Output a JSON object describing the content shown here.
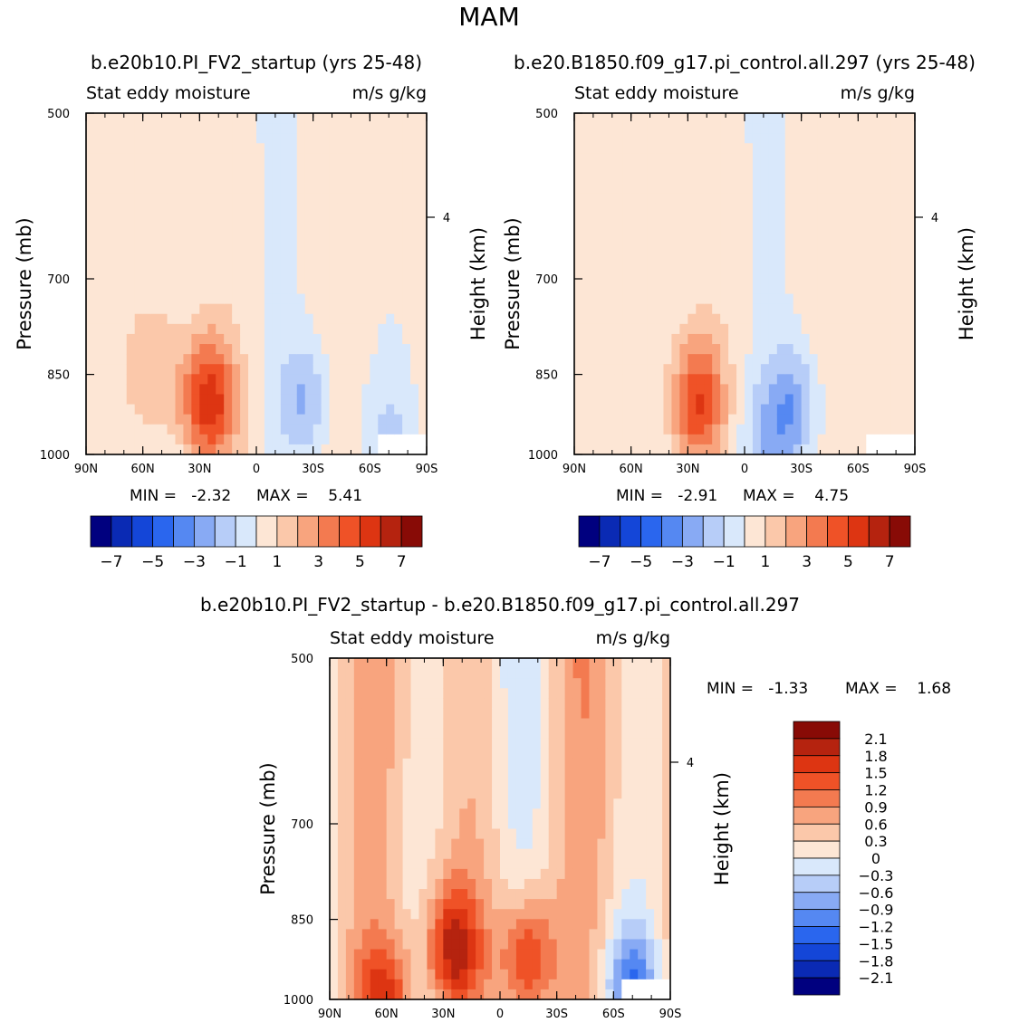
{
  "figure": {
    "season": "MAM"
  },
  "colors": {
    "levels14": [
      "#00007f",
      "#0a2ab4",
      "#1446d8",
      "#2a66ee",
      "#5588f2",
      "#88aaf4",
      "#b7cdf8",
      "#d9e8fb",
      "#fde6d5",
      "#fbc8aa",
      "#f8a47e",
      "#f37a50",
      "#ef5227",
      "#dd3512",
      "#b5230f",
      "#880b06"
    ],
    "diff": [
      "#00007f",
      "#0a2ab4",
      "#1446d8",
      "#2a66ee",
      "#5588f2",
      "#88aaf4",
      "#b7cdf8",
      "#d9e8fb",
      "#fde6d5",
      "#fbc8aa",
      "#f8a47e",
      "#f37a50",
      "#ef5227",
      "#dd3512",
      "#b5230f",
      "#880b06"
    ]
  },
  "chart_data": [
    {
      "type": "heatmap",
      "id": "panel1",
      "title": "b.e20b10.PI_FV2_startup (yrs 25-48)",
      "left_label": "Stat eddy moisture",
      "right_label": "m/s g/kg",
      "xlabel": "",
      "ylabel": "Pressure (mb)",
      "y2label": "Height (km)",
      "xticks": [
        "90N",
        "60N",
        "30N",
        "0",
        "30S",
        "60S",
        "90S"
      ],
      "xlim": [
        90,
        -90
      ],
      "yticks": [
        "500",
        "700",
        "850",
        "1000"
      ],
      "ylim": [
        1000,
        500
      ],
      "y2ticks": [
        "4"
      ],
      "min_text": "MIN =   -2.32",
      "max_text": "MAX =    5.41",
      "min": -2.32,
      "max": 5.41,
      "colorbar_labels": [
        "-7",
        "-5",
        "-3",
        "-1",
        "1",
        "3",
        "5",
        "7"
      ],
      "features": [
        {
          "lat": 25,
          "p": 900,
          "value": 5.4,
          "note": "positive maximum"
        },
        {
          "lat": -25,
          "p": 900,
          "value": -2.3,
          "note": "negative minimum"
        },
        {
          "lat": 50,
          "p": 850,
          "value": 1.5
        },
        {
          "lat": -70,
          "p": 940,
          "value": -1.2
        }
      ]
    },
    {
      "type": "heatmap",
      "id": "panel2",
      "title": "b.e20.B1850.f09_g17.pi_control.all.297 (yrs 25-48)",
      "left_label": "Stat eddy moisture",
      "right_label": "m/s g/kg",
      "xlabel": "",
      "ylabel": "Pressure (mb)",
      "y2label": "Height (km)",
      "xticks": [
        "90N",
        "60N",
        "30N",
        "0",
        "30S",
        "60S",
        "90S"
      ],
      "xlim": [
        90,
        -90
      ],
      "yticks": [
        "500",
        "700",
        "850",
        "1000"
      ],
      "ylim": [
        1000,
        500
      ],
      "y2ticks": [
        "4"
      ],
      "min_text": "MIN =   -2.91",
      "max_text": "MAX =    4.75",
      "min": -2.91,
      "max": 4.75,
      "colorbar_labels": [
        "-7",
        "-5",
        "-3",
        "-1",
        "1",
        "3",
        "5",
        "7"
      ],
      "features": [
        {
          "lat": 25,
          "p": 900,
          "value": 4.7,
          "note": "positive maximum"
        },
        {
          "lat": -25,
          "p": 910,
          "value": -2.9,
          "note": "negative minimum"
        },
        {
          "lat": -10,
          "p": 970,
          "value": -1.5
        }
      ]
    },
    {
      "type": "heatmap",
      "id": "panel3",
      "title": "b.e20b10.PI_FV2_startup - b.e20.B1850.f09_g17.pi_control.all.297",
      "left_label": "Stat eddy moisture",
      "right_label": "m/s g/kg",
      "xlabel": "",
      "ylabel": "Pressure (mb)",
      "y2label": "Height (km)",
      "xticks": [
        "90N",
        "60N",
        "30N",
        "0",
        "30S",
        "60S",
        "90S"
      ],
      "xlim": [
        90,
        -90
      ],
      "yticks": [
        "500",
        "700",
        "850",
        "1000"
      ],
      "ylim": [
        1000,
        500
      ],
      "y2ticks": [
        "4"
      ],
      "min_text": "MIN =   -1.33",
      "max_text": "MAX =    1.68",
      "min": -1.33,
      "max": 1.68,
      "colorbar_labels": [
        "2.1",
        "1.8",
        "1.5",
        "1.2",
        "0.9",
        "0.6",
        "0.3",
        "0",
        "-0.3",
        "-0.6",
        "-0.9",
        "-1.2",
        "-1.5",
        "-1.8",
        "-2.1"
      ],
      "features": [
        {
          "lat": 25,
          "p": 900,
          "value": 1.6
        },
        {
          "lat": -15,
          "p": 920,
          "value": 1.5
        },
        {
          "lat": -70,
          "p": 970,
          "value": -1.3,
          "note": "negative minimum"
        },
        {
          "lat": 60,
          "p": 990,
          "value": 1.2
        }
      ]
    }
  ]
}
